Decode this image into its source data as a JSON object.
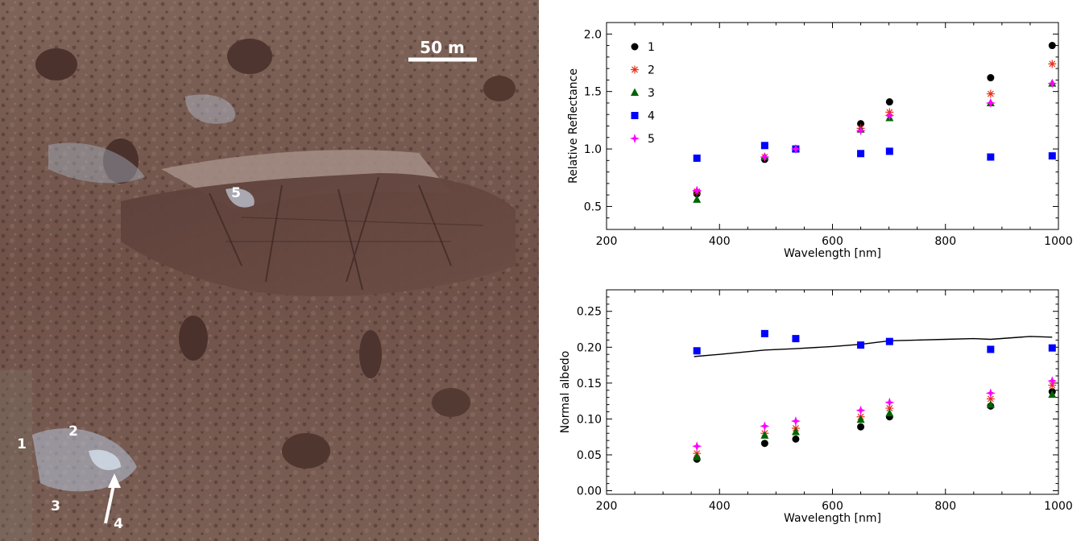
{
  "photo": {
    "scale_label": "50 m",
    "labels": [
      "1",
      "2",
      "3",
      "4",
      "5"
    ]
  },
  "chart_data": [
    {
      "type": "scatter",
      "xlabel": "Wavelength [nm]",
      "ylabel": "Relative Reflectance",
      "xlim": [
        200,
        1000
      ],
      "ylim": [
        0.3,
        2.1
      ],
      "xticks": [
        200,
        400,
        600,
        800,
        1000
      ],
      "yticks": [
        0.5,
        1.0,
        1.5,
        2.0
      ],
      "ytick_labels": [
        "0.5",
        "1.0",
        "1.5",
        "2.0"
      ],
      "legend_position": "top-left",
      "series": [
        {
          "name": "1",
          "marker": "circle",
          "color": "#000000",
          "x": [
            360,
            480,
            535,
            650,
            701,
            880,
            989
          ],
          "y": [
            0.61,
            0.91,
            1.0,
            1.22,
            1.41,
            1.62,
            1.9
          ]
        },
        {
          "name": "2",
          "marker": "asterisk",
          "color": "#e8301c",
          "x": [
            360,
            480,
            535,
            650,
            701,
            880,
            989
          ],
          "y": [
            0.63,
            0.93,
            1.0,
            1.18,
            1.32,
            1.48,
            1.74
          ]
        },
        {
          "name": "3",
          "marker": "triangle",
          "color": "#006400",
          "x": [
            360,
            480,
            535,
            650,
            701,
            880,
            989
          ],
          "y": [
            0.56,
            0.93,
            1.0,
            1.17,
            1.27,
            1.4,
            1.57
          ]
        },
        {
          "name": "4",
          "marker": "square",
          "color": "#0000ff",
          "x": [
            360,
            480,
            535,
            650,
            701,
            880,
            989
          ],
          "y": [
            0.92,
            1.03,
            1.0,
            0.96,
            0.98,
            0.93,
            0.94
          ]
        },
        {
          "name": "5",
          "marker": "star",
          "color": "#ff00ff",
          "x": [
            360,
            480,
            535,
            650,
            701,
            880,
            989
          ],
          "y": [
            0.64,
            0.93,
            1.0,
            1.16,
            1.29,
            1.4,
            1.57
          ]
        }
      ]
    },
    {
      "type": "scatter",
      "xlabel": "Wavelength [nm]",
      "ylabel": "Normal albedo",
      "xlim": [
        200,
        1000
      ],
      "ylim": [
        -0.005,
        0.28
      ],
      "xticks": [
        200,
        400,
        600,
        800,
        1000
      ],
      "yticks": [
        0.0,
        0.05,
        0.1,
        0.15,
        0.2,
        0.25
      ],
      "ytick_labels": [
        "0.00",
        "0.05",
        "0.10",
        "0.15",
        "0.20",
        "0.25"
      ],
      "series": [
        {
          "name": "",
          "marker": "line",
          "color": "#000000",
          "x": [
            355,
            400,
            480,
            535,
            600,
            650,
            701,
            750,
            800,
            850,
            880,
            950,
            989
          ],
          "y": [
            0.187,
            0.19,
            0.196,
            0.198,
            0.201,
            0.204,
            0.209,
            0.21,
            0.211,
            0.212,
            0.211,
            0.215,
            0.214
          ]
        },
        {
          "name": "1",
          "marker": "circle",
          "color": "#000000",
          "x": [
            360,
            480,
            535,
            650,
            701,
            880,
            989
          ],
          "y": [
            0.044,
            0.066,
            0.072,
            0.089,
            0.103,
            0.118,
            0.138
          ]
        },
        {
          "name": "2",
          "marker": "asterisk",
          "color": "#e8301c",
          "x": [
            360,
            480,
            535,
            650,
            701,
            880,
            989
          ],
          "y": [
            0.052,
            0.08,
            0.087,
            0.103,
            0.115,
            0.128,
            0.147
          ]
        },
        {
          "name": "3",
          "marker": "triangle",
          "color": "#006400",
          "x": [
            360,
            480,
            535,
            650,
            701,
            880,
            989
          ],
          "y": [
            0.047,
            0.077,
            0.082,
            0.099,
            0.108,
            0.12,
            0.134
          ]
        },
        {
          "name": "4",
          "marker": "square",
          "color": "#0000ff",
          "x": [
            360,
            480,
            535,
            650,
            701,
            880,
            989
          ],
          "y": [
            0.195,
            0.219,
            0.212,
            0.203,
            0.208,
            0.197,
            0.199
          ]
        },
        {
          "name": "5",
          "marker": "star",
          "color": "#ff00ff",
          "x": [
            360,
            480,
            535,
            650,
            701,
            880,
            989
          ],
          "y": [
            0.062,
            0.09,
            0.097,
            0.112,
            0.123,
            0.136,
            0.153
          ]
        }
      ]
    }
  ]
}
